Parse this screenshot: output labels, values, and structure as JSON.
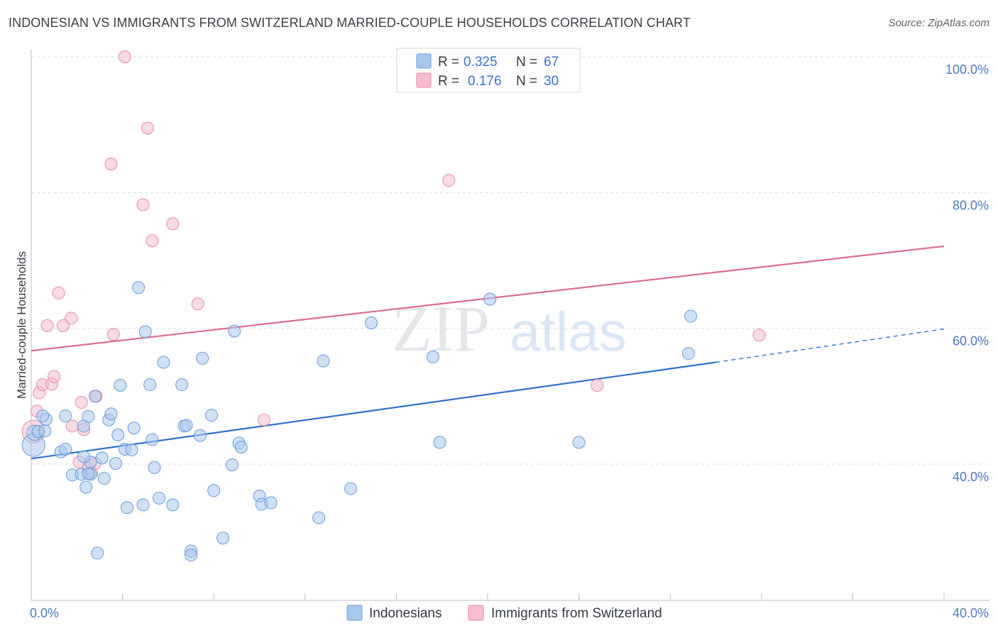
{
  "title": "INDONESIAN VS IMMIGRANTS FROM SWITZERLAND MARRIED-COUPLE HOUSEHOLDS CORRELATION CHART",
  "source": "Source: ZipAtlas.com",
  "watermark": {
    "zip": "ZIP",
    "atlas": "atlas"
  },
  "legend_top": [
    {
      "r_label": "R =",
      "r_value": "0.325",
      "n_label": "N =",
      "n_value": "67"
    },
    {
      "r_label": "R =",
      "r_value": "0.176",
      "n_label": "N =",
      "n_value": "30"
    }
  ],
  "legend_bottom": [
    "Indonesians",
    "Immigrants from Switzerland"
  ],
  "colors": {
    "blue_fill": "#a9c8ef",
    "blue_stroke": "#6a9bd8",
    "blue_line": "#2f72d0",
    "pink_fill": "#f6bdd0",
    "pink_stroke": "#e88aa8",
    "pink_line": "#e06a93",
    "grid": "#d9dde3",
    "axis_text": "#4a79c7"
  },
  "chart_data": {
    "type": "scatter",
    "title": "INDONESIAN VS IMMIGRANTS FROM SWITZERLAND MARRIED-COUPLE HOUSEHOLDS CORRELATION CHART",
    "xlabel": "",
    "ylabel": "Married-couple Households",
    "xlim": [
      0,
      40
    ],
    "ylim": [
      22,
      102
    ],
    "x_tick_labels": [
      {
        "value": 0,
        "label": "0.0%"
      },
      {
        "value": 40,
        "label": "40.0%"
      }
    ],
    "y_tick_labels": [
      {
        "value": 100,
        "label": "100.0%"
      },
      {
        "value": 80,
        "label": "80.0%"
      },
      {
        "value": 60,
        "label": "60.0%"
      },
      {
        "value": 40,
        "label": "40.0%"
      }
    ],
    "y_gridlines": [
      100,
      80,
      60,
      40
    ],
    "legend_position": "top-center",
    "series": [
      {
        "name": "Indonesians",
        "r": 0.325,
        "n": 67,
        "trend": {
          "x0": 0,
          "y0": 40.8,
          "x1": 30,
          "y1": 55.0,
          "dash_to_x": 40,
          "dash_to_y": 59.9
        },
        "points": [
          [
            0.1,
            42.8,
            "L"
          ],
          [
            0.15,
            44.6,
            "M"
          ],
          [
            0.3,
            44.8
          ],
          [
            0.6,
            44.9
          ],
          [
            0.65,
            46.6
          ],
          [
            0.5,
            47.1
          ],
          [
            1.3,
            41.8
          ],
          [
            1.5,
            42.2
          ],
          [
            1.8,
            38.4
          ],
          [
            2.2,
            38.5
          ],
          [
            2.6,
            38.5
          ],
          [
            2.3,
            45.6
          ],
          [
            1.5,
            47.1
          ],
          [
            2.5,
            38.6
          ],
          [
            2.4,
            36.6
          ],
          [
            2.5,
            47.0
          ],
          [
            2.8,
            50.0
          ],
          [
            3.1,
            40.9
          ],
          [
            2.6,
            40.3
          ],
          [
            3.2,
            37.9
          ],
          [
            3.4,
            46.5
          ],
          [
            3.5,
            47.4
          ],
          [
            3.7,
            40.1
          ],
          [
            3.8,
            44.3
          ],
          [
            3.9,
            51.6
          ],
          [
            4.1,
            42.2
          ],
          [
            4.4,
            42.1
          ],
          [
            4.5,
            45.3
          ],
          [
            4.7,
            66.0
          ],
          [
            5.0,
            59.5
          ],
          [
            5.2,
            51.7
          ],
          [
            5.3,
            43.6
          ],
          [
            5.4,
            39.5
          ],
          [
            5.6,
            35.0
          ],
          [
            5.8,
            55.0
          ],
          [
            6.2,
            34.0
          ],
          [
            6.6,
            51.7
          ],
          [
            6.7,
            45.6
          ],
          [
            6.8,
            45.7
          ],
          [
            7.0,
            27.2
          ],
          [
            7.0,
            26.6
          ],
          [
            7.4,
            44.2
          ],
          [
            7.5,
            55.6
          ],
          [
            7.9,
            47.2
          ],
          [
            8.0,
            36.1
          ],
          [
            8.4,
            29.1
          ],
          [
            8.8,
            39.9
          ],
          [
            8.9,
            59.6
          ],
          [
            9.1,
            43.1
          ],
          [
            9.2,
            42.5
          ],
          [
            10.0,
            35.3
          ],
          [
            10.1,
            34.1
          ],
          [
            10.5,
            34.3
          ],
          [
            4.2,
            33.6
          ],
          [
            4.9,
            34.0
          ],
          [
            2.9,
            26.9
          ],
          [
            12.6,
            32.1
          ],
          [
            12.8,
            55.2
          ],
          [
            14.0,
            36.4
          ],
          [
            14.9,
            60.8
          ],
          [
            17.6,
            55.8
          ],
          [
            17.9,
            43.2
          ],
          [
            20.1,
            64.3
          ],
          [
            24.0,
            43.2
          ],
          [
            28.8,
            56.3
          ],
          [
            28.9,
            61.8
          ],
          [
            2.3,
            41.1
          ]
        ]
      },
      {
        "name": "Immigrants from Switzerland",
        "r": 0.176,
        "n": 30,
        "trend": {
          "x0": 0,
          "y0": 56.7,
          "x1": 40,
          "y1": 72.1
        },
        "points": [
          [
            0.1,
            44.8,
            "L"
          ],
          [
            0.25,
            47.8
          ],
          [
            0.35,
            50.5
          ],
          [
            0.5,
            51.7
          ],
          [
            0.7,
            60.4
          ],
          [
            0.9,
            51.8
          ],
          [
            1.0,
            52.9
          ],
          [
            1.2,
            65.2
          ],
          [
            1.4,
            60.4
          ],
          [
            1.75,
            61.5
          ],
          [
            1.8,
            45.6
          ],
          [
            2.1,
            40.3
          ],
          [
            2.2,
            49.1
          ],
          [
            2.3,
            45.1
          ],
          [
            2.5,
            39.4
          ],
          [
            2.65,
            38.7
          ],
          [
            2.8,
            40.1
          ],
          [
            2.85,
            50.0
          ],
          [
            3.5,
            84.2
          ],
          [
            3.6,
            59.1
          ],
          [
            4.1,
            100.0
          ],
          [
            4.9,
            78.2
          ],
          [
            5.1,
            89.5
          ],
          [
            5.3,
            72.9
          ],
          [
            6.2,
            75.4
          ],
          [
            7.3,
            63.6
          ],
          [
            10.2,
            46.5
          ],
          [
            18.3,
            81.8
          ],
          [
            24.8,
            51.6
          ],
          [
            31.9,
            59.0
          ]
        ]
      }
    ]
  }
}
